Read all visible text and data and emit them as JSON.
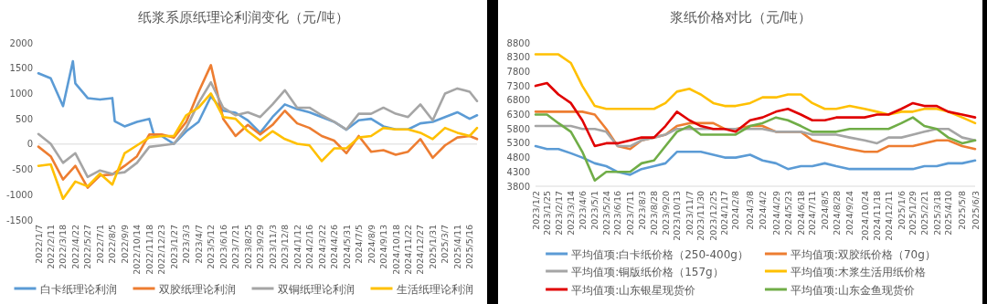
{
  "chart_data": [
    {
      "type": "line",
      "title": "纸浆系原纸理论利润变化（元/吨）",
      "x": [
        "2022-01-07",
        "2022-02-11",
        "2022-03-18",
        "2022-04-22",
        "2022-05-27",
        "2022-07-01",
        "2022-08-05",
        "2022-09-09",
        "2022-10-14",
        "2022-11-18",
        "2022-12-23",
        "2023-01-27",
        "2023-03-03",
        "2023-04-07",
        "2023-05-12",
        "2023-06-16",
        "2023-07-21",
        "2023-08-25",
        "2023-09-29",
        "2023-11-03",
        "2023-12-08",
        "2024-01-12",
        "2024-02-16",
        "2024-03-22",
        "2024-04-26",
        "2024-05-31",
        "2024-07-05",
        "2024-08-09",
        "2024-09-13",
        "2024-10-18",
        "2024-11-22",
        "2024-12-27",
        "2025-01-31",
        "2025-03-07",
        "2025-04-11",
        "2025-05-16",
        "2025-06-06"
      ],
      "series": [
        {
          "name": "白卡纸理论利润",
          "color": "#5b9bd5",
          "x": [
            "2022-01-07",
            "2022-02-11",
            "2022-03-18",
            "2022-04-15",
            "2022-04-22",
            "2022-05-27",
            "2022-07-01",
            "2022-08-05",
            "2022-08-12",
            "2022-09-09",
            "2022-10-14",
            "2022-11-18",
            "2022-12-02",
            "2022-12-23",
            "2023-01-27",
            "2023-03-03",
            "2023-04-07",
            "2023-05-12",
            "2023-06-16",
            "2023-07-21",
            "2023-08-25",
            "2023-09-29",
            "2023-11-03",
            "2023-12-08",
            "2024-01-12",
            "2024-02-16",
            "2024-03-22",
            "2024-04-26",
            "2024-05-31",
            "2024-07-05",
            "2024-08-09",
            "2024-09-13",
            "2024-10-18",
            "2024-11-22",
            "2024-12-27",
            "2025-01-31",
            "2025-03-07",
            "2025-04-11",
            "2025-05-16",
            "2025-06-06"
          ],
          "values": [
            1400,
            1300,
            750,
            1640,
            1200,
            910,
            880,
            910,
            450,
            350,
            440,
            500,
            160,
            160,
            5,
            255,
            440,
            940,
            660,
            620,
            470,
            225,
            535,
            785,
            690,
            630,
            535,
            440,
            285,
            470,
            500,
            350,
            290,
            290,
            410,
            440,
            535,
            630,
            500,
            570
          ]
        },
        {
          "name": "双胶纸理论利润",
          "color": "#ed7d31",
          "values": [
            -50,
            -240,
            -700,
            -430,
            -860,
            -620,
            -600,
            -430,
            -240,
            190,
            190,
            130,
            440,
            1030,
            1560,
            500,
            160,
            380,
            190,
            380,
            660,
            410,
            320,
            160,
            70,
            -180,
            160,
            -150,
            -120,
            -210,
            -150,
            100,
            -270,
            -25,
            130,
            160,
            100
          ]
        },
        {
          "name": "双铜纸理论利润",
          "color": "#a5a5a5",
          "values": [
            200,
            5,
            -370,
            -180,
            -650,
            -520,
            -590,
            -555,
            -370,
            -55,
            -25,
            5,
            320,
            815,
            1220,
            720,
            570,
            630,
            535,
            785,
            1065,
            720,
            720,
            570,
            440,
            290,
            600,
            600,
            720,
            600,
            535,
            785,
            470,
            1000,
            1100,
            1035,
            850
          ]
        },
        {
          "name": "生活纸理论利润",
          "color": "#ffc000",
          "values": [
            -430,
            -400,
            -1080,
            -740,
            -835,
            -585,
            -800,
            -180,
            -25,
            130,
            160,
            160,
            570,
            720,
            1000,
            535,
            500,
            255,
            70,
            255,
            100,
            5,
            -25,
            -335,
            -85,
            -85,
            130,
            160,
            320,
            290,
            290,
            225,
            100,
            320,
            225,
            160,
            320
          ]
        }
      ],
      "xlim": [
        "2022-01-07",
        "2025-06-06"
      ],
      "xticks": [
        {
          "value": "2022-01-07",
          "label": "2022/1/7"
        },
        {
          "value": "2022-02-11",
          "label": "2022/2/11"
        },
        {
          "value": "2022-03-18",
          "label": "2022/3/18"
        },
        {
          "value": "2022-04-22",
          "label": "2022/4/22"
        },
        {
          "value": "2022-05-27",
          "label": "2022/5/27"
        },
        {
          "value": "2022-07-01",
          "label": "2022/7/1"
        },
        {
          "value": "2022-08-05",
          "label": "2022/8/5"
        },
        {
          "value": "2022-09-09",
          "label": "2022/9/9"
        },
        {
          "value": "2022-10-14",
          "label": "2022/10/14"
        },
        {
          "value": "2022-11-18",
          "label": "2022/11/18"
        },
        {
          "value": "2022-12-23",
          "label": "2022/12/23"
        },
        {
          "value": "2023-01-27",
          "label": "2023/1/27"
        },
        {
          "value": "2023-03-03",
          "label": "2023/3/3"
        },
        {
          "value": "2023-04-07",
          "label": "2023/4/7"
        },
        {
          "value": "2023-05-12",
          "label": "2023/5/12"
        },
        {
          "value": "2023-06-16",
          "label": "2023/6/16"
        },
        {
          "value": "2023-07-21",
          "label": "2023/7/21"
        },
        {
          "value": "2023-08-25",
          "label": "2023/8/25"
        },
        {
          "value": "2023-09-29",
          "label": "2023/9/29"
        },
        {
          "value": "2023-11-03",
          "label": "2023/11/3"
        },
        {
          "value": "2023-12-08",
          "label": "2023/12/8"
        },
        {
          "value": "2024-01-12",
          "label": "2024/1/12"
        },
        {
          "value": "2024-02-16",
          "label": "2024/2/16"
        },
        {
          "value": "2024-03-22",
          "label": "2024/3/22"
        },
        {
          "value": "2024-04-26",
          "label": "2024/4/26"
        },
        {
          "value": "2024-05-31",
          "label": "2024/5/31"
        },
        {
          "value": "2024-07-05",
          "label": "2024/7/5"
        },
        {
          "value": "2024-08-09",
          "label": "2024/8/9"
        },
        {
          "value": "2024-09-13",
          "label": "2024/9/13"
        },
        {
          "value": "2024-10-18",
          "label": "2024/10/18"
        },
        {
          "value": "2024-11-22",
          "label": "2024/11/22"
        },
        {
          "value": "2024-12-27",
          "label": "2024/12/27"
        },
        {
          "value": "2025-01-31",
          "label": "2025/1/31"
        },
        {
          "value": "2025-03-07",
          "label": "2025/3/7"
        },
        {
          "value": "2025-04-11",
          "label": "2025/4/11"
        },
        {
          "value": "2025-05-16",
          "label": "2025/5/16"
        }
      ],
      "ylim": [
        -1500,
        2000
      ],
      "yticks": [
        -1500,
        -1000,
        -500,
        0,
        500,
        1000,
        1500,
        2000
      ],
      "legend": "bottom",
      "marker": "none",
      "line_style": "solid"
    },
    {
      "type": "line",
      "title": "浆纸价格对比（元/吨）",
      "x": [
        "2023-01-02",
        "2023-01-25",
        "2023-02-17",
        "2023-03-14",
        "2023-04-06",
        "2023-05-01",
        "2023-05-24",
        "2023-06-16",
        "2023-07-11",
        "2023-08-03",
        "2023-08-28",
        "2023-09-20",
        "2023-10-13",
        "2023-11-07",
        "2023-11-30",
        "2023-12-25",
        "2024-01-17",
        "2024-02-08",
        "2024-03-08",
        "2024-04-02",
        "2024-04-29",
        "2024-05-23",
        "2024-06-18",
        "2024-07-11",
        "2024-08-05",
        "2024-08-28",
        "2024-09-24",
        "2024-10-24",
        "2024-11-18",
        "2024-12-11",
        "2025-01-06",
        "2025-01-29",
        "2025-02-21",
        "2025-03-18",
        "2025-04-10",
        "2025-05-08",
        "2025-06-03"
      ],
      "series": [
        {
          "name": "平均值项:白卡纸价格（250-400g）",
          "color": "#5b9bd5",
          "values": [
            5200,
            5100,
            5100,
            4950,
            4800,
            4600,
            4500,
            4300,
            4200,
            4400,
            4500,
            4600,
            5000,
            5000,
            5000,
            4900,
            4800,
            4800,
            4900,
            4700,
            4600,
            4400,
            4500,
            4500,
            4600,
            4500,
            4400,
            4400,
            4400,
            4400,
            4400,
            4400,
            4500,
            4500,
            4600,
            4600,
            4700
          ]
        },
        {
          "name": "平均值项:双胶纸价格（70g）",
          "color": "#ed7d31",
          "values": [
            6400,
            6400,
            6400,
            6400,
            6400,
            6300,
            5800,
            5200,
            5100,
            5400,
            5500,
            5600,
            5900,
            6000,
            6000,
            6000,
            5800,
            5800,
            5900,
            5900,
            5700,
            5700,
            5700,
            5400,
            5300,
            5200,
            5100,
            5000,
            5000,
            5200,
            5200,
            5200,
            5300,
            5400,
            5400,
            5200,
            5100
          ]
        },
        {
          "name": "平均值项:铜版纸价格（157g）",
          "color": "#a5a5a5",
          "values": [
            5900,
            5900,
            5900,
            5900,
            5800,
            5800,
            5700,
            5200,
            5200,
            5400,
            5500,
            5600,
            5800,
            5800,
            5800,
            5800,
            5800,
            5800,
            5800,
            5800,
            5700,
            5700,
            5700,
            5600,
            5600,
            5600,
            5500,
            5400,
            5300,
            5500,
            5500,
            5600,
            5700,
            5800,
            5800,
            5500,
            5400
          ]
        },
        {
          "name": "平均值项:木浆生活用纸价格",
          "color": "#ffc000",
          "values": [
            8400,
            8400,
            8400,
            8100,
            7300,
            6600,
            6500,
            6500,
            6500,
            6500,
            6500,
            6700,
            7100,
            7200,
            7000,
            6700,
            6600,
            6600,
            6700,
            6900,
            6900,
            7000,
            7000,
            6700,
            6500,
            6500,
            6600,
            6500,
            6400,
            6300,
            6400,
            6400,
            6500,
            6500,
            6400,
            6200,
            6000
          ]
        },
        {
          "name": "平均值项:山东银星现货价",
          "color": "#e00000",
          "values": [
            7300,
            7400,
            7000,
            6700,
            6100,
            5200,
            5300,
            5300,
            5400,
            5500,
            5500,
            5900,
            6400,
            6100,
            5900,
            5800,
            5800,
            5700,
            6100,
            6200,
            6400,
            6500,
            6300,
            6100,
            6100,
            6200,
            6200,
            6200,
            6300,
            6300,
            6500,
            6700,
            6600,
            6600,
            6400,
            6300,
            6200
          ]
        },
        {
          "name": "平均值项:山东金鱼现货价",
          "color": "#70ad47",
          "values": [
            6300,
            6300,
            6000,
            5700,
            5000,
            4000,
            4300,
            4300,
            4300,
            4600,
            4700,
            5200,
            5700,
            5900,
            5600,
            5600,
            5600,
            5600,
            5900,
            6000,
            6200,
            6100,
            5900,
            5700,
            5700,
            5700,
            5800,
            5800,
            5800,
            5800,
            6000,
            6200,
            5900,
            5800,
            5500,
            5300,
            5400
          ]
        }
      ],
      "xlim": [
        "2023-01-02",
        "2025-06-03"
      ],
      "xticks": [
        {
          "value": "2023-01-02",
          "label": "2023/1/2"
        },
        {
          "value": "2023-01-25",
          "label": "2023/1/25"
        },
        {
          "value": "2023-02-17",
          "label": "2023/2/17"
        },
        {
          "value": "2023-03-14",
          "label": "2023/3/14"
        },
        {
          "value": "2023-04-06",
          "label": "2023/4/6"
        },
        {
          "value": "2023-05-01",
          "label": "2023/5/1"
        },
        {
          "value": "2023-05-24",
          "label": "2023/5/24"
        },
        {
          "value": "2023-06-16",
          "label": "2023/6/16"
        },
        {
          "value": "2023-07-11",
          "label": "2023/7/11"
        },
        {
          "value": "2023-08-03",
          "label": "2023/8/3"
        },
        {
          "value": "2023-08-28",
          "label": "2023/8/28"
        },
        {
          "value": "2023-09-20",
          "label": "2023/9/20"
        },
        {
          "value": "2023-10-13",
          "label": "2023/10/13"
        },
        {
          "value": "2023-11-07",
          "label": "2023/11/7"
        },
        {
          "value": "2023-11-30",
          "label": "2023/11/30"
        },
        {
          "value": "2023-12-25",
          "label": "2023/12/25"
        },
        {
          "value": "2024-01-17",
          "label": "2024/1/17"
        },
        {
          "value": "2024-02-08",
          "label": "2024/2/8"
        },
        {
          "value": "2024-03-08",
          "label": "2024/3/8"
        },
        {
          "value": "2024-04-02",
          "label": "2024/4/2"
        },
        {
          "value": "2024-04-29",
          "label": "2024/4/29"
        },
        {
          "value": "2024-05-23",
          "label": "2024/5/23"
        },
        {
          "value": "2024-06-18",
          "label": "2024/6/18"
        },
        {
          "value": "2024-07-11",
          "label": "2024/7/11"
        },
        {
          "value": "2024-08-05",
          "label": "2024/8/5"
        },
        {
          "value": "2024-08-28",
          "label": "2024/8/28"
        },
        {
          "value": "2024-09-24",
          "label": "2024/9/24"
        },
        {
          "value": "2024-10-24",
          "label": "2024/10/24"
        },
        {
          "value": "2024-11-18",
          "label": "2024/11/18"
        },
        {
          "value": "2024-12-11",
          "label": "2024/12/11"
        },
        {
          "value": "2025-01-06",
          "label": "2025/1/6"
        },
        {
          "value": "2025-01-29",
          "label": "2025/1/29"
        },
        {
          "value": "2025-02-21",
          "label": "2025/2/21"
        },
        {
          "value": "2025-03-18",
          "label": "2025/3/18"
        },
        {
          "value": "2025-04-10",
          "label": "2025/4/10"
        },
        {
          "value": "2025-05-08",
          "label": "2025/5/8"
        },
        {
          "value": "2025-06-03",
          "label": "2025/6/3"
        }
      ],
      "ylim": [
        3800,
        8800
      ],
      "yticks": [
        3800,
        4300,
        4800,
        5300,
        5800,
        6300,
        6800,
        7300,
        7800,
        8300,
        8800
      ],
      "legend": "bottom",
      "marker": "none",
      "line_style": "solid"
    }
  ]
}
